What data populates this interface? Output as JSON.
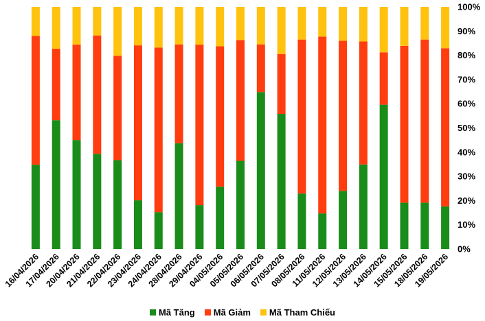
{
  "chart_data": {
    "type": "bar",
    "stacked": true,
    "orientation": "vertical",
    "y_axis_position": "right",
    "ylim": [
      0,
      100
    ],
    "yticks": [
      "0%",
      "10%",
      "20%",
      "30%",
      "40%",
      "50%",
      "60%",
      "70%",
      "80%",
      "90%",
      "100%"
    ],
    "categories": [
      "16/04/2026",
      "17/04/2026",
      "20/04/2026",
      "21/04/2026",
      "22/04/2026",
      "23/04/2026",
      "24/04/2026",
      "28/04/2026",
      "29/04/2026",
      "04/05/2026",
      "05/05/2026",
      "06/05/2026",
      "07/05/2026",
      "08/05/2026",
      "11/05/2026",
      "12/05/2026",
      "13/05/2026",
      "14/05/2026",
      "15/05/2026",
      "18/05/2026",
      "19/05/2026"
    ],
    "series": [
      {
        "name": "Mã Tăng",
        "color": "#1a8c1a",
        "values": [
          34.8,
          53.2,
          45.0,
          39.3,
          36.7,
          20.1,
          15.2,
          43.7,
          18.1,
          25.7,
          36.4,
          64.8,
          55.8,
          22.9,
          14.7,
          24.0,
          34.9,
          59.6,
          19.1,
          19.1,
          17.6
        ]
      },
      {
        "name": "Mã Giảm",
        "color": "#ff3d0f",
        "values": [
          53.2,
          29.5,
          39.4,
          48.9,
          43.1,
          64.0,
          68.0,
          40.8,
          66.3,
          58.0,
          49.9,
          19.7,
          24.7,
          63.6,
          73.0,
          62.0,
          50.8,
          21.6,
          64.8,
          67.4,
          65.3
        ]
      },
      {
        "name": "Mã Tham Chiếu",
        "color": "#ffc20e",
        "values": [
          12.0,
          17.3,
          15.6,
          11.8,
          20.2,
          15.9,
          16.8,
          15.5,
          15.6,
          16.3,
          13.7,
          15.5,
          19.5,
          13.5,
          12.3,
          14.0,
          14.3,
          18.8,
          16.1,
          13.5,
          17.1
        ]
      }
    ],
    "legend_position": "bottom",
    "grid": false
  }
}
